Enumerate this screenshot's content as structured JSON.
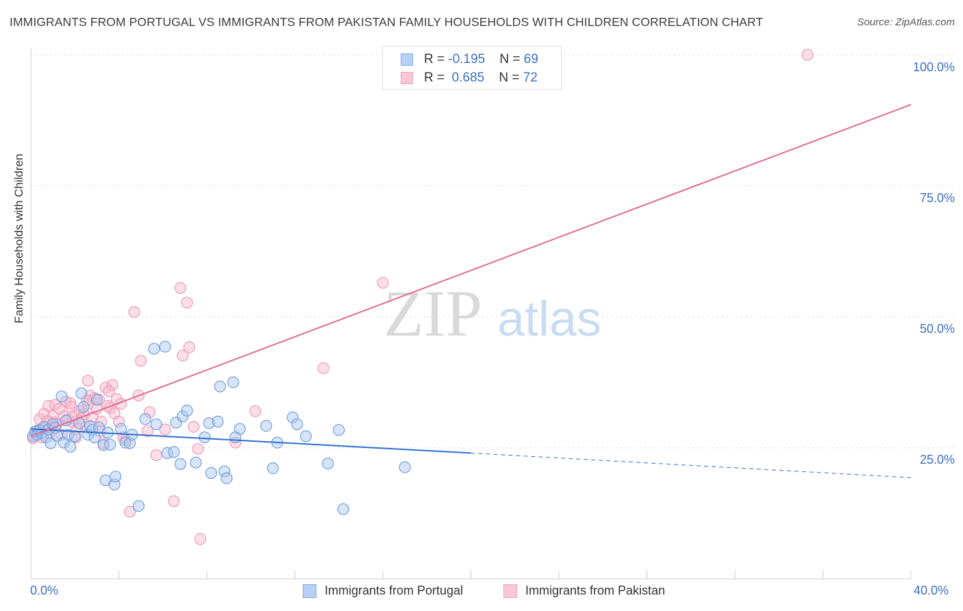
{
  "header": {
    "title": "IMMIGRANTS FROM PORTUGAL VS IMMIGRANTS FROM PAKISTAN FAMILY HOUSEHOLDS WITH CHILDREN CORRELATION CHART",
    "source": "Source: ZipAtlas.com"
  },
  "watermark": {
    "zip": "ZIP",
    "atlas": "atlas"
  },
  "legend": {
    "series": [
      {
        "r_label": "R = ",
        "r_value": "-0.195",
        "n_label": "N = ",
        "n_value": "69"
      },
      {
        "r_label": "R = ",
        "r_value": " 0.685",
        "n_label": "N = ",
        "n_value": "72"
      }
    ]
  },
  "chart_data": {
    "type": "scatter",
    "title": "IMMIGRANTS FROM PORTUGAL VS IMMIGRANTS FROM PAKISTAN FAMILY HOUSEHOLDS WITH CHILDREN CORRELATION CHART",
    "xlabel": "",
    "ylabel": "Family Households with Children",
    "xlim": [
      0,
      40
    ],
    "ylim": [
      0,
      102
    ],
    "x_tick_labels": {
      "min": "0.0%",
      "max": "40.0%"
    },
    "y_ticks": [
      25,
      50,
      75,
      100
    ],
    "y_tick_labels": [
      "25.0%",
      "50.0%",
      "75.0%",
      "100.0%"
    ],
    "grid": true,
    "colors": {
      "portugal": "#7aaae8",
      "portugal_line": "#2b6fcf",
      "pakistan": "#f4a0bb",
      "pakistan_line": "#e06a93"
    },
    "series": [
      {
        "name": "Immigrants from Portugal",
        "color": "#7aaae8",
        "trend": {
          "x0": 0,
          "y0": 28.6,
          "x1": 20,
          "y1": 24.0,
          "dash_to_x": 40,
          "dash_to_y": 19.3
        },
        "points": [
          [
            0.1,
            27.2
          ],
          [
            0.2,
            28.1
          ],
          [
            0.3,
            27.5
          ],
          [
            0.4,
            28.3
          ],
          [
            0.5,
            27.8
          ],
          [
            0.6,
            29.0
          ],
          [
            0.7,
            27.0
          ],
          [
            0.8,
            28.5
          ],
          [
            0.9,
            25.9
          ],
          [
            1.0,
            29.5
          ],
          [
            1.1,
            28.8
          ],
          [
            1.2,
            27.3
          ],
          [
            1.4,
            34.8
          ],
          [
            1.5,
            26.0
          ],
          [
            1.6,
            30.2
          ],
          [
            1.7,
            27.5
          ],
          [
            1.8,
            25.2
          ],
          [
            2.0,
            27.2
          ],
          [
            2.2,
            29.7
          ],
          [
            2.3,
            35.4
          ],
          [
            2.4,
            32.8
          ],
          [
            2.6,
            27.5
          ],
          [
            2.7,
            29.1
          ],
          [
            2.8,
            28.4
          ],
          [
            2.9,
            27.0
          ],
          [
            3.0,
            34.2
          ],
          [
            3.1,
            28.9
          ],
          [
            3.3,
            25.5
          ],
          [
            3.4,
            18.8
          ],
          [
            3.5,
            27.9
          ],
          [
            3.6,
            25.6
          ],
          [
            3.8,
            18.0
          ],
          [
            3.85,
            19.5
          ],
          [
            4.1,
            28.6
          ],
          [
            4.3,
            26.0
          ],
          [
            4.5,
            25.9
          ],
          [
            4.6,
            27.5
          ],
          [
            4.9,
            13.9
          ],
          [
            5.2,
            30.5
          ],
          [
            5.7,
            29.5
          ],
          [
            5.6,
            43.9
          ],
          [
            6.1,
            44.3
          ],
          [
            6.2,
            24.0
          ],
          [
            6.5,
            24.2
          ],
          [
            6.6,
            29.8
          ],
          [
            6.8,
            21.9
          ],
          [
            6.9,
            31.0
          ],
          [
            7.1,
            32.1
          ],
          [
            7.5,
            22.2
          ],
          [
            7.9,
            27.0
          ],
          [
            8.1,
            29.7
          ],
          [
            8.2,
            20.2
          ],
          [
            8.5,
            30.0
          ],
          [
            8.6,
            36.7
          ],
          [
            8.8,
            20.5
          ],
          [
            8.9,
            19.2
          ],
          [
            9.2,
            37.5
          ],
          [
            9.3,
            27.0
          ],
          [
            9.5,
            28.6
          ],
          [
            10.7,
            29.2
          ],
          [
            11.0,
            21.1
          ],
          [
            11.2,
            26.0
          ],
          [
            11.9,
            30.8
          ],
          [
            12.1,
            29.5
          ],
          [
            12.5,
            27.2
          ],
          [
            13.5,
            22.0
          ],
          [
            14.0,
            28.4
          ],
          [
            14.2,
            13.3
          ],
          [
            17.0,
            21.3
          ]
        ]
      },
      {
        "name": "Immigrants from Pakistan",
        "color": "#f4a0bb",
        "trend": {
          "x0": 0,
          "y0": 27.2,
          "x1": 40,
          "y1": 90.5
        },
        "points": [
          [
            0.1,
            26.8
          ],
          [
            0.2,
            27.5
          ],
          [
            0.3,
            28.3
          ],
          [
            0.4,
            30.5
          ],
          [
            0.5,
            27.0
          ],
          [
            0.6,
            31.5
          ],
          [
            0.7,
            29.0
          ],
          [
            0.8,
            33.0
          ],
          [
            0.9,
            28.0
          ],
          [
            1.0,
            31.0
          ],
          [
            1.1,
            33.2
          ],
          [
            1.2,
            29.6
          ],
          [
            1.3,
            32.5
          ],
          [
            1.4,
            27.5
          ],
          [
            1.5,
            31.0
          ],
          [
            1.6,
            33.8
          ],
          [
            1.7,
            30.4
          ],
          [
            1.8,
            33.5
          ],
          [
            1.9,
            29.9
          ],
          [
            2.0,
            31.2
          ],
          [
            2.1,
            28.6
          ],
          [
            2.2,
            32.0
          ],
          [
            2.3,
            30.6
          ],
          [
            2.4,
            31.4
          ],
          [
            2.5,
            29.0
          ],
          [
            2.6,
            33.4
          ],
          [
            2.7,
            35.0
          ],
          [
            2.8,
            30.9
          ],
          [
            2.6,
            37.8
          ],
          [
            2.9,
            34.5
          ],
          [
            3.0,
            32.4
          ],
          [
            3.1,
            34.2
          ],
          [
            3.2,
            30.0
          ],
          [
            3.3,
            25.9
          ],
          [
            3.4,
            36.5
          ],
          [
            3.5,
            33.0
          ],
          [
            3.6,
            32.6
          ],
          [
            3.7,
            37.0
          ],
          [
            3.8,
            31.6
          ],
          [
            3.9,
            34.3
          ],
          [
            4.0,
            30.0
          ],
          [
            4.1,
            33.4
          ],
          [
            4.2,
            27.0
          ],
          [
            4.3,
            26.5
          ],
          [
            4.5,
            12.8
          ],
          [
            4.7,
            50.9
          ],
          [
            4.9,
            35.0
          ],
          [
            5.0,
            41.6
          ],
          [
            5.3,
            28.2
          ],
          [
            5.4,
            31.8
          ],
          [
            5.7,
            23.6
          ],
          [
            6.1,
            28.5
          ],
          [
            6.5,
            14.8
          ],
          [
            6.8,
            55.5
          ],
          [
            6.9,
            42.6
          ],
          [
            7.1,
            52.7
          ],
          [
            7.2,
            44.2
          ],
          [
            7.4,
            29.0
          ],
          [
            7.6,
            24.8
          ],
          [
            7.7,
            7.6
          ],
          [
            9.3,
            26.0
          ],
          [
            10.2,
            32.0
          ],
          [
            13.3,
            40.2
          ],
          [
            16.0,
            56.5
          ],
          [
            35.3,
            100.0
          ],
          [
            1.05,
            29.8
          ],
          [
            2.05,
            27.0
          ],
          [
            3.15,
            28.2
          ],
          [
            0.75,
            30.1
          ],
          [
            1.85,
            32.8
          ],
          [
            2.55,
            34.0
          ],
          [
            3.55,
            35.8
          ]
        ]
      }
    ]
  },
  "bottom_legend": {
    "portugal": "Immigrants from Portugal",
    "pakistan": "Immigrants from Pakistan"
  }
}
